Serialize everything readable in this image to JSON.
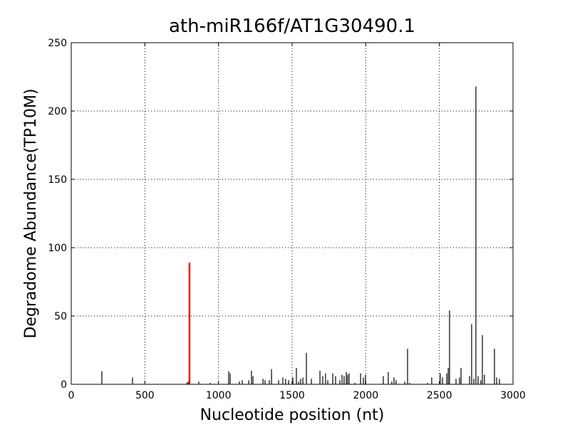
{
  "chart_data": {
    "type": "bar",
    "title": "ath-miR166f/AT1G30490.1",
    "x_label": "Nucleotide position (nt)",
    "y_label": "Degradome Abundance(TP10M)",
    "xlim": [
      0,
      3000
    ],
    "ylim": [
      0,
      250
    ],
    "xticks": [
      0,
      500,
      1000,
      1500,
      2000,
      2500,
      3000
    ],
    "yticks": [
      0,
      50,
      100,
      150,
      200,
      250
    ],
    "grid": true,
    "series": [
      {
        "color": "#000000",
        "x": [
          208,
          416,
          784,
          793,
          866,
          943,
          1069,
          1079,
          1142,
          1161,
          1205,
          1224,
          1234,
          1302,
          1316,
          1345,
          1360,
          1408,
          1437,
          1456,
          1476,
          1505,
          1529,
          1544,
          1558,
          1573,
          1597,
          1631,
          1689,
          1708,
          1727,
          1742,
          1776,
          1795,
          1824,
          1839,
          1853,
          1868,
          1877,
          1887,
          1926,
          1965,
          1984,
          1998,
          2119,
          2153,
          2177,
          2192,
          2206,
          2265,
          2284,
          2298,
          2419,
          2448,
          2506,
          2521,
          2550,
          2560,
          2569,
          2613,
          2637,
          2647,
          2705,
          2719,
          2734,
          2748,
          2763,
          2782,
          2792,
          2806,
          2874,
          2889,
          2908
        ],
        "values": [
          9.5,
          5,
          1,
          2,
          2,
          1,
          9.5,
          8,
          2,
          3,
          3,
          10,
          6,
          4,
          3,
          3,
          11,
          3,
          5,
          4,
          3,
          5,
          12,
          2,
          4,
          5,
          23,
          4,
          10,
          6,
          8,
          3,
          8,
          6,
          3,
          7,
          6,
          9,
          7,
          8,
          1,
          8,
          5,
          7,
          6,
          9,
          2,
          5,
          3,
          2,
          26,
          1,
          1,
          5,
          8,
          5,
          8,
          12,
          54,
          4,
          5,
          12,
          6,
          44,
          4,
          218,
          6,
          3,
          36,
          7,
          26,
          5,
          4
        ]
      },
      {
        "color": "#ff0000",
        "x": [
          803
        ],
        "values": [
          89
        ]
      }
    ]
  }
}
